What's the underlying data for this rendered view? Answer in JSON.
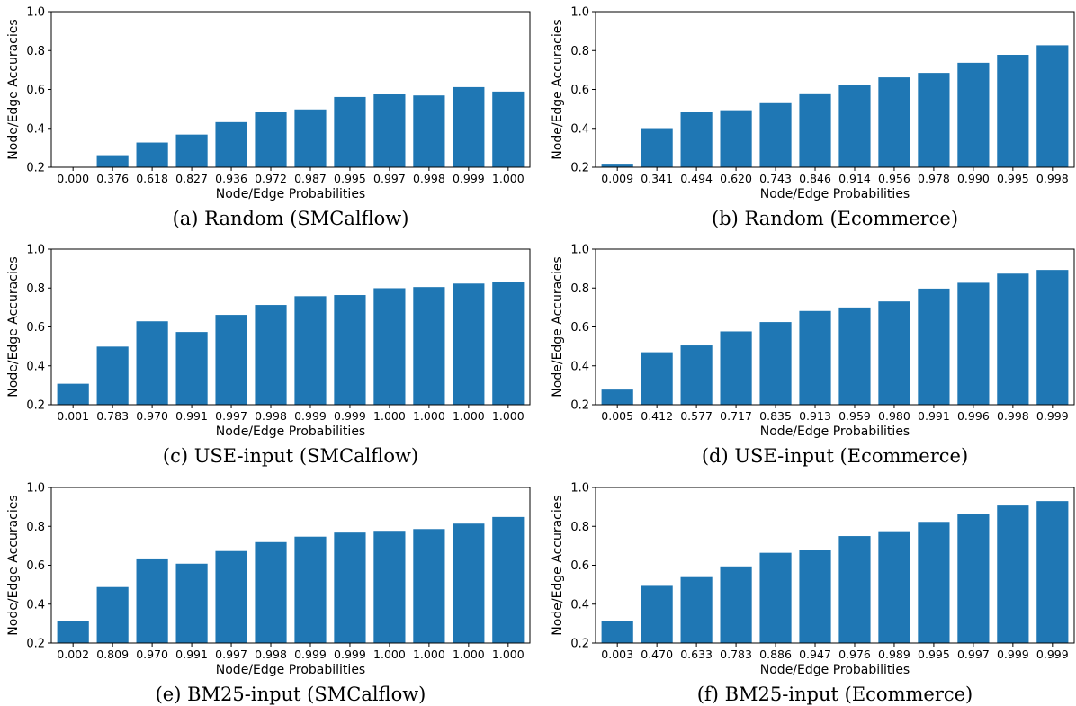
{
  "chart_data": [
    {
      "type": "bar",
      "caption": "(a) Random (SMCalflow)",
      "xlabel": "Node/Edge Probabilities",
      "ylabel": "Node/Edge Accuracies",
      "ylim": [
        0.2,
        1.0
      ],
      "yticks": [
        "0.2",
        "0.4",
        "0.6",
        "0.8",
        "1.0"
      ],
      "categories": [
        "0.000",
        "0.376",
        "0.618",
        "0.827",
        "0.936",
        "0.972",
        "0.987",
        "0.995",
        "0.997",
        "0.998",
        "0.999",
        "1.000"
      ],
      "values": [
        0.2,
        0.262,
        0.327,
        0.368,
        0.432,
        0.483,
        0.497,
        0.561,
        0.578,
        0.569,
        0.612,
        0.589
      ],
      "color": "#1f77b4",
      "grid": false
    },
    {
      "type": "bar",
      "caption": "(b) Random (Ecommerce)",
      "xlabel": "Node/Edge Probabilities",
      "ylabel": "Node/Edge Accuracies",
      "ylim": [
        0.2,
        1.0
      ],
      "yticks": [
        "0.2",
        "0.4",
        "0.6",
        "0.8",
        "1.0"
      ],
      "categories": [
        "0.009",
        "0.341",
        "0.494",
        "0.620",
        "0.743",
        "0.846",
        "0.914",
        "0.956",
        "0.978",
        "0.990",
        "0.995",
        "0.998"
      ],
      "values": [
        0.218,
        0.401,
        0.485,
        0.493,
        0.534,
        0.58,
        0.622,
        0.662,
        0.685,
        0.737,
        0.778,
        0.827
      ],
      "color": "#1f77b4",
      "grid": false
    },
    {
      "type": "bar",
      "caption": "(c) USE-input (SMCalflow)",
      "xlabel": "Node/Edge Probabilities",
      "ylabel": "Node/Edge Accuracies",
      "ylim": [
        0.2,
        1.0
      ],
      "yticks": [
        "0.2",
        "0.4",
        "0.6",
        "0.8",
        "1.0"
      ],
      "categories": [
        "0.001",
        "0.783",
        "0.970",
        "0.991",
        "0.997",
        "0.998",
        "0.999",
        "0.999",
        "1.000",
        "1.000",
        "1.000",
        "1.000"
      ],
      "values": [
        0.308,
        0.499,
        0.629,
        0.574,
        0.662,
        0.713,
        0.758,
        0.764,
        0.799,
        0.805,
        0.823,
        0.831
      ],
      "color": "#1f77b4",
      "grid": false
    },
    {
      "type": "bar",
      "caption": "(d) USE-input (Ecommerce)",
      "xlabel": "Node/Edge Probabilities",
      "ylabel": "Node/Edge Accuracies",
      "ylim": [
        0.2,
        1.0
      ],
      "yticks": [
        "0.2",
        "0.4",
        "0.6",
        "0.8",
        "1.0"
      ],
      "categories": [
        "0.005",
        "0.412",
        "0.577",
        "0.717",
        "0.835",
        "0.913",
        "0.959",
        "0.980",
        "0.991",
        "0.996",
        "0.998",
        "0.999"
      ],
      "values": [
        0.278,
        0.47,
        0.505,
        0.577,
        0.625,
        0.682,
        0.7,
        0.731,
        0.797,
        0.827,
        0.874,
        0.893
      ],
      "color": "#1f77b4",
      "grid": false
    },
    {
      "type": "bar",
      "caption": "(e) BM25-input (SMCalflow)",
      "xlabel": "Node/Edge Probabilities",
      "ylabel": "Node/Edge Accuracies",
      "ylim": [
        0.2,
        1.0
      ],
      "yticks": [
        "0.2",
        "0.4",
        "0.6",
        "0.8",
        "1.0"
      ],
      "categories": [
        "0.002",
        "0.809",
        "0.970",
        "0.991",
        "0.997",
        "0.998",
        "0.999",
        "0.999",
        "1.000",
        "1.000",
        "1.000",
        "1.000"
      ],
      "values": [
        0.313,
        0.488,
        0.635,
        0.608,
        0.673,
        0.719,
        0.747,
        0.768,
        0.777,
        0.786,
        0.814,
        0.848
      ],
      "color": "#1f77b4",
      "grid": false
    },
    {
      "type": "bar",
      "caption": "(f) BM25-input (Ecommerce)",
      "xlabel": "Node/Edge Probabilities",
      "ylabel": "Node/Edge Accuracies",
      "ylim": [
        0.2,
        1.0
      ],
      "yticks": [
        "0.2",
        "0.4",
        "0.6",
        "0.8",
        "1.0"
      ],
      "categories": [
        "0.003",
        "0.470",
        "0.633",
        "0.783",
        "0.886",
        "0.947",
        "0.976",
        "0.989",
        "0.995",
        "0.997",
        "0.999",
        "0.999"
      ],
      "values": [
        0.313,
        0.494,
        0.539,
        0.594,
        0.664,
        0.678,
        0.75,
        0.775,
        0.823,
        0.862,
        0.907,
        0.93
      ],
      "color": "#1f77b4",
      "grid": false
    }
  ]
}
